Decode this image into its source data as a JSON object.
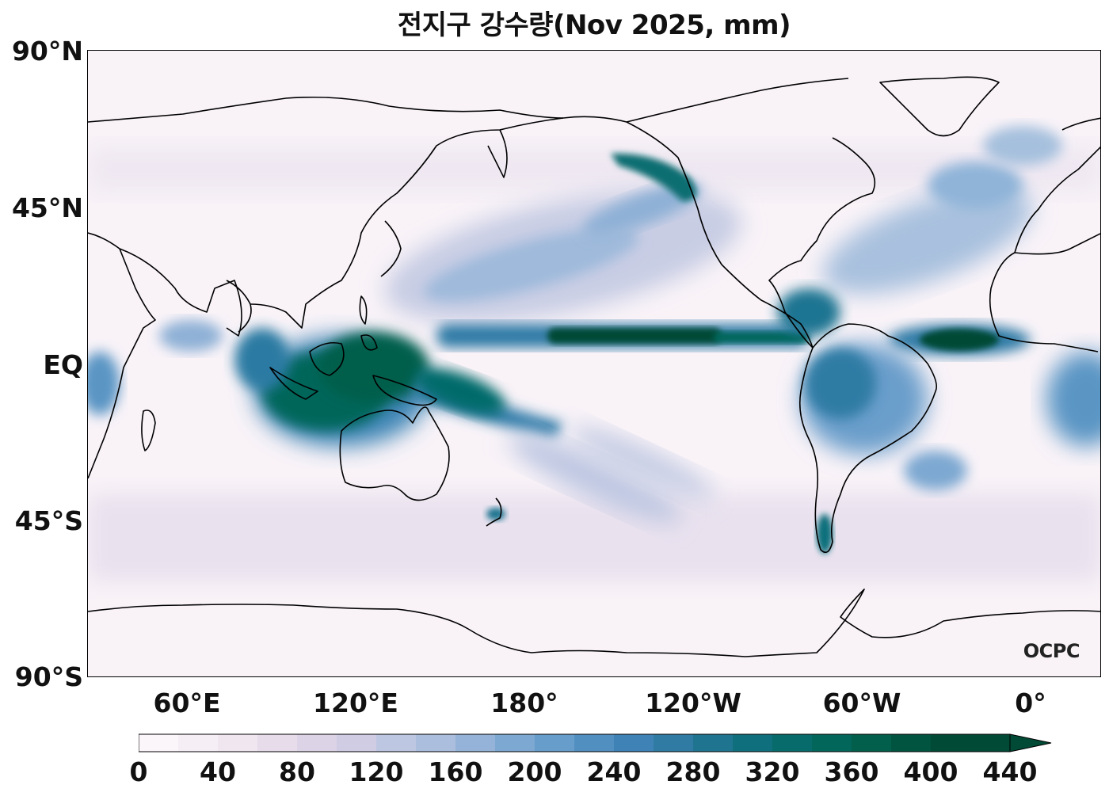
{
  "title": "전지구 강수량(Nov 2025, mm)",
  "lat_labels": [
    "90°N",
    "45°N",
    "EQ",
    "45°S",
    "90°S"
  ],
  "lon_labels": [
    "60°E",
    "120°E",
    "180°",
    "120°W",
    "60°W",
    "0°"
  ],
  "logo": "OCPC",
  "colorbar": {
    "ticks": [
      "0",
      "40",
      "80",
      "120",
      "160",
      "200",
      "240",
      "280",
      "320",
      "360",
      "400",
      "440"
    ],
    "extend": "max",
    "colors": [
      "#fbf6fa",
      "#f5eef5",
      "#efe6f0",
      "#e6dcea",
      "#dcd3e6",
      "#cfcce3",
      "#bec7e1",
      "#abbedd",
      "#95b3d8",
      "#7da8d1",
      "#679dca",
      "#528fc1",
      "#3f82b6",
      "#2f7ba4",
      "#1f7590",
      "#0f6f7c",
      "#066b6a",
      "#02665a",
      "#015f4c",
      "#005440",
      "#004a36"
    ],
    "cmap_name": "PuBuGn"
  },
  "map_data": {
    "projection": "PlateCarree, central_longitude 180",
    "lon_range": [
      30,
      390
    ],
    "lat_range": [
      -90,
      90
    ],
    "variable": "monthly precipitation (mm)"
  }
}
